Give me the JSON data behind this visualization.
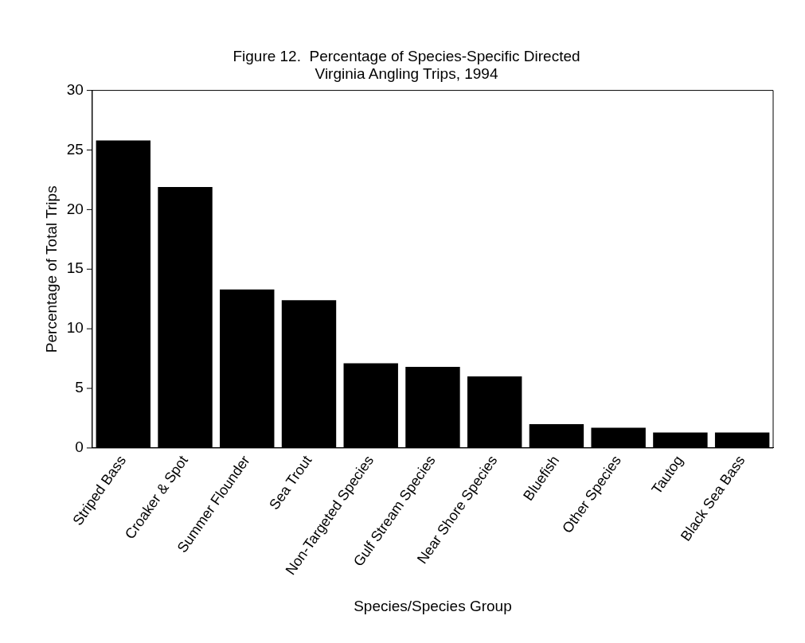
{
  "chart_data": {
    "type": "bar",
    "title": [
      "Figure 12.  Percentage of Species-Specific Directed",
      "Virginia Angling Trips, 1994"
    ],
    "xlabel": "Species/Species Group",
    "ylabel": "Percentage of Total Trips",
    "categories": [
      "Striped Bass",
      "Croaker & Spot",
      "Summer Flounder",
      "Sea Trout",
      "Non-Targeted Species",
      "Gulf Stream Species",
      "Near Shore Species",
      "Bluefish",
      "Other Species",
      "Tautog",
      "Black Sea Bass"
    ],
    "values": [
      25.8,
      21.9,
      13.3,
      12.4,
      7.1,
      6.8,
      6.0,
      2.0,
      1.7,
      1.3,
      1.3
    ],
    "color": "#000000",
    "ylim": [
      0,
      30
    ],
    "yticks": [
      0,
      5,
      10,
      15,
      20,
      25,
      30
    ],
    "grid": false,
    "legend": false
  }
}
